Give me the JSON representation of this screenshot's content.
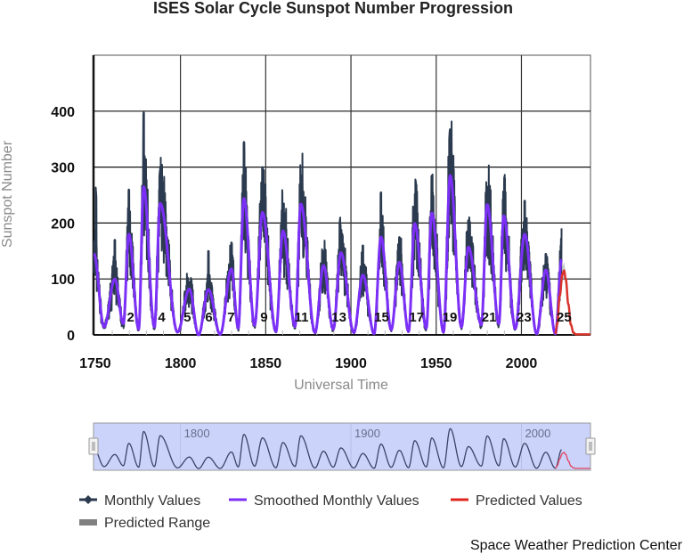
{
  "chart_data": {
    "type": "line",
    "title": "ISES Solar Cycle Sunspot Number Progression",
    "xlabel": "Universal Time",
    "ylabel": "Sunspot Number",
    "xlim": [
      1749,
      2040.5
    ],
    "ylim": [
      0,
      500
    ],
    "x_ticks": [
      1750,
      1800,
      1850,
      1900,
      1950,
      2000
    ],
    "y_ticks": [
      0,
      100,
      200,
      300,
      400
    ],
    "grid": true,
    "legend_position": "bottom",
    "colors": {
      "monthly": "#2b3a4e",
      "smoothed": "#7b2ff7",
      "predicted": "#d9332b",
      "predicted_range": "#9a9a9a",
      "navigator_bg": "#ccd3fb"
    },
    "series": [
      {
        "name": "Monthly Values",
        "note_peaks": [
          [
            1750.5,
            255
          ],
          [
            1761.5,
            170
          ],
          [
            1769.7,
            260
          ],
          [
            1778.4,
            398
          ],
          [
            1787.8,
            290
          ],
          [
            1805.2,
            95
          ],
          [
            1816.4,
            150
          ],
          [
            1830,
            165
          ],
          [
            1837.2,
            345
          ],
          [
            1848.1,
            300
          ],
          [
            1860.1,
            215
          ],
          [
            1870.6,
            285
          ],
          [
            1883.9,
            150
          ],
          [
            1893.5,
            205
          ],
          [
            1907,
            160
          ],
          [
            1917.6,
            255
          ],
          [
            1928.4,
            175
          ],
          [
            1938,
            275
          ],
          [
            1947.4,
            285
          ],
          [
            1957.8,
            360
          ],
          [
            1968.9,
            205
          ],
          [
            1979.9,
            265
          ],
          [
            1989.6,
            255
          ],
          [
            2001.9,
            240
          ],
          [
            2014.3,
            145
          ],
          [
            2024.5,
            220
          ]
        ]
      },
      {
        "name": "Smoothed Monthly Values",
        "extrema": [
          [
            1749.2,
            145
          ],
          [
            1755.2,
            14
          ],
          [
            1761.5,
            100
          ],
          [
            1766.5,
            20
          ],
          [
            1769.7,
            180
          ],
          [
            1775.5,
            10
          ],
          [
            1778.4,
            265
          ],
          [
            1784.7,
            14
          ],
          [
            1788.1,
            235
          ],
          [
            1798.3,
            5
          ],
          [
            1805.2,
            82
          ],
          [
            1810.6,
            0
          ],
          [
            1816.4,
            81
          ],
          [
            1823.3,
            1
          ],
          [
            1829.9,
            118
          ],
          [
            1833.9,
            12
          ],
          [
            1837.2,
            244
          ],
          [
            1843.5,
            17
          ],
          [
            1848.1,
            219
          ],
          [
            1856.0,
            6
          ],
          [
            1860.1,
            186
          ],
          [
            1867.2,
            15
          ],
          [
            1870.6,
            234
          ],
          [
            1878.9,
            4
          ],
          [
            1883.9,
            124
          ],
          [
            1889.6,
            10
          ],
          [
            1894.1,
            147
          ],
          [
            1901.7,
            4
          ],
          [
            1907.0,
            107
          ],
          [
            1913.6,
            2
          ],
          [
            1917.6,
            175
          ],
          [
            1923.6,
            9
          ],
          [
            1928.4,
            130
          ],
          [
            1933.8,
            6
          ],
          [
            1937.4,
            199
          ],
          [
            1944.2,
            12
          ],
          [
            1947.4,
            218
          ],
          [
            1954.3,
            5
          ],
          [
            1958.2,
            285
          ],
          [
            1964.8,
            14
          ],
          [
            1968.9,
            157
          ],
          [
            1976.5,
            18
          ],
          [
            1979.9,
            233
          ],
          [
            1986.8,
            20
          ],
          [
            1989.6,
            213
          ],
          [
            1996.4,
            11
          ],
          [
            2001.9,
            180
          ],
          [
            2008.9,
            2
          ],
          [
            2014.3,
            116
          ],
          [
            2019.9,
            2
          ],
          [
            2023.6,
            135
          ]
        ]
      },
      {
        "name": "Predicted Values",
        "points": [
          [
            2019.9,
            2
          ],
          [
            2021,
            20
          ],
          [
            2022.5,
            70
          ],
          [
            2024,
            108
          ],
          [
            2025,
            115
          ],
          [
            2026,
            100
          ],
          [
            2027.5,
            55
          ],
          [
            2029,
            18
          ],
          [
            2030.5,
            4
          ],
          [
            2032,
            1
          ],
          [
            2040.5,
            1
          ]
        ]
      },
      {
        "name": "Predicted Range",
        "points": [
          [
            2024,
            95,
            122
          ],
          [
            2025,
            102,
            130
          ],
          [
            2026,
            88,
            112
          ]
        ]
      }
    ],
    "cycle_labels": [
      {
        "label": "2",
        "year": 1770.8
      },
      {
        "label": "4",
        "year": 1789
      },
      {
        "label": "5",
        "year": 1804
      },
      {
        "label": "6",
        "year": 1816.7
      },
      {
        "label": "7",
        "year": 1829.7
      },
      {
        "label": "9",
        "year": 1849
      },
      {
        "label": "11",
        "year": 1871
      },
      {
        "label": "13",
        "year": 1893
      },
      {
        "label": "15",
        "year": 1918
      },
      {
        "label": "17",
        "year": 1938.5
      },
      {
        "label": "19",
        "year": 1958
      },
      {
        "label": "21",
        "year": 1981
      },
      {
        "label": "23",
        "year": 2001.5
      },
      {
        "label": "25",
        "year": 2025
      }
    ]
  },
  "navigator": {
    "labels": [
      "1800",
      "1900",
      "2000"
    ],
    "label_years": [
      1800,
      1900,
      2000
    ]
  },
  "legend": {
    "items": [
      {
        "label": "Monthly Values",
        "icon": "line-diamond-marker",
        "color": "#2b3a4e"
      },
      {
        "label": "Smoothed Monthly Values",
        "icon": "line",
        "color": "#7b2ff7"
      },
      {
        "label": "Predicted Values",
        "icon": "line",
        "color": "#e0251f"
      },
      {
        "label": "Predicted Range",
        "icon": "bar",
        "color": "#808080"
      }
    ]
  },
  "credit": "Space Weather Prediction Center"
}
